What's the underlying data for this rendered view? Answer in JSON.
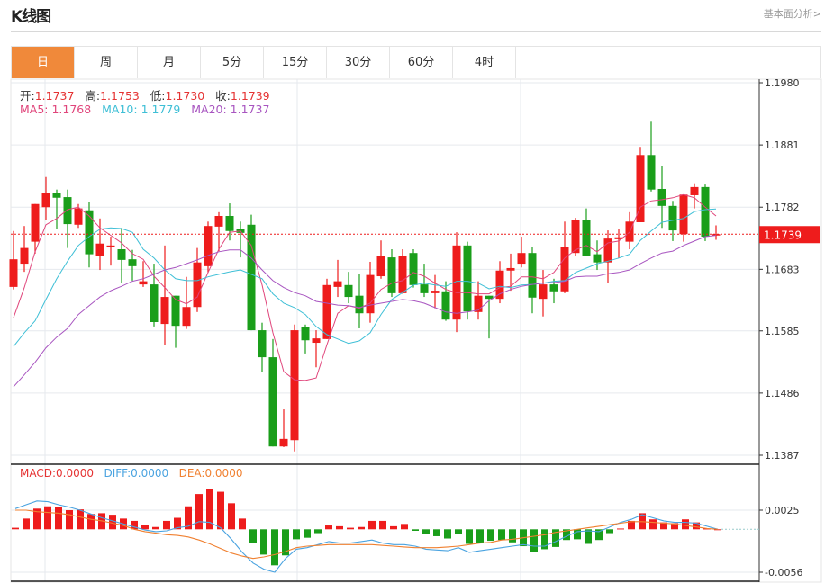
{
  "header": {
    "title": "K线图",
    "link": "基本面分析>"
  },
  "tabs": [
    {
      "label": "日",
      "active": true
    },
    {
      "label": "周"
    },
    {
      "label": "月"
    },
    {
      "label": "5分"
    },
    {
      "label": "15分"
    },
    {
      "label": "30分"
    },
    {
      "label": "60分"
    },
    {
      "label": "4时"
    }
  ],
  "legend": {
    "open_label": "开:",
    "open": "1.1737",
    "high_label": "高:",
    "high": "1.1753",
    "low_label": "低:",
    "low": "1.1730",
    "close_label": "收:",
    "close": "1.1739",
    "ma5": "MA5: 1.1768",
    "ma10": "MA10: 1.1779",
    "ma20": "MA20: 1.1737"
  },
  "macd_legend": {
    "macd": "MACD:0.0000",
    "diff": "DIFF:0.0000",
    "dea": "DEA:0.0000"
  },
  "colors": {
    "up": "#ee1c1c",
    "down": "#1a9e1a",
    "accent": "#f0893a",
    "ma5": "#e0457b",
    "ma10": "#3ebfd6",
    "ma20": "#a855c0",
    "diff": "#4aa3e0",
    "dea": "#f08030",
    "legend_value": "#e53333"
  },
  "chart_data": [
    {
      "type": "candlestick",
      "candle_fields": [
        "open",
        "high",
        "low",
        "close"
      ],
      "ylim": [
        1.1387,
        1.198
      ],
      "yticks": [
        "1.1980",
        "1.1881",
        "1.1782",
        "1.1683",
        "1.1585",
        "1.1486",
        "1.1387"
      ],
      "last_price": "1.1739",
      "grid": true,
      "candles": [
        [
          1.1655,
          1.1744,
          1.1651,
          1.1699
        ],
        [
          1.1692,
          1.1752,
          1.1679,
          1.1717
        ],
        [
          1.1727,
          1.1787,
          1.1708,
          1.1787
        ],
        [
          1.1782,
          1.183,
          1.1761,
          1.1805
        ],
        [
          1.1804,
          1.181,
          1.1747,
          1.1797
        ],
        [
          1.1798,
          1.181,
          1.1717,
          1.1755
        ],
        [
          1.1754,
          1.1787,
          1.1749,
          1.178
        ],
        [
          1.1777,
          1.179,
          1.1686,
          1.1707
        ],
        [
          1.1705,
          1.1764,
          1.1682,
          1.1724
        ],
        [
          1.1718,
          1.1735,
          1.1689,
          1.1721
        ],
        [
          1.1715,
          1.1749,
          1.1662,
          1.1698
        ],
        [
          1.1699,
          1.1714,
          1.1665,
          1.1688
        ],
        [
          1.1659,
          1.1696,
          1.1655,
          1.1664
        ],
        [
          1.1659,
          1.1692,
          1.1592,
          1.1599
        ],
        [
          1.1596,
          1.1721,
          1.1563,
          1.1639
        ],
        [
          1.1641,
          1.1641,
          1.1558,
          1.1593
        ],
        [
          1.1593,
          1.1671,
          1.1588,
          1.1623
        ],
        [
          1.1623,
          1.1717,
          1.1615,
          1.1694
        ],
        [
          1.1688,
          1.1759,
          1.1678,
          1.1752
        ],
        [
          1.1751,
          1.1774,
          1.1712,
          1.1768
        ],
        [
          1.1768,
          1.1788,
          1.1729,
          1.1744
        ],
        [
          1.1747,
          1.1759,
          1.1702,
          1.1741
        ],
        [
          1.1754,
          1.177,
          1.1586,
          1.1586
        ],
        [
          1.1586,
          1.1598,
          1.1519,
          1.1543
        ],
        [
          1.1543,
          1.1572,
          1.1401,
          1.1401
        ],
        [
          1.1401,
          1.146,
          1.14,
          1.1413
        ],
        [
          1.1411,
          1.1595,
          1.1393,
          1.1586
        ],
        [
          1.1591,
          1.1595,
          1.1549,
          1.157
        ],
        [
          1.1566,
          1.1586,
          1.1527,
          1.1573
        ],
        [
          1.1572,
          1.1668,
          1.1572,
          1.1658
        ],
        [
          1.1655,
          1.1698,
          1.1639,
          1.1664
        ],
        [
          1.1658,
          1.1679,
          1.1629,
          1.1639
        ],
        [
          1.1641,
          1.1675,
          1.1589,
          1.1613
        ],
        [
          1.1613,
          1.1695,
          1.1598,
          1.1674
        ],
        [
          1.1672,
          1.1729,
          1.1668,
          1.1704
        ],
        [
          1.1702,
          1.1715,
          1.1639,
          1.1645
        ],
        [
          1.1645,
          1.1715,
          1.1644,
          1.1704
        ],
        [
          1.1709,
          1.1715,
          1.1654,
          1.1658
        ],
        [
          1.1659,
          1.1692,
          1.1639,
          1.1645
        ],
        [
          1.1645,
          1.1674,
          1.1621,
          1.1649
        ],
        [
          1.1648,
          1.1664,
          1.1601,
          1.1603
        ],
        [
          1.1603,
          1.1742,
          1.1583,
          1.1721
        ],
        [
          1.1721,
          1.1727,
          1.1603,
          1.1616
        ],
        [
          1.1615,
          1.1664,
          1.1603,
          1.1641
        ],
        [
          1.1641,
          1.1641,
          1.1573,
          1.1636
        ],
        [
          1.1636,
          1.1696,
          1.1629,
          1.1681
        ],
        [
          1.1681,
          1.1708,
          1.1649,
          1.1685
        ],
        [
          1.1692,
          1.1735,
          1.1686,
          1.1709
        ],
        [
          1.1709,
          1.1718,
          1.1613,
          1.1638
        ],
        [
          1.1636,
          1.1682,
          1.1608,
          1.1659
        ],
        [
          1.1659,
          1.1668,
          1.1629,
          1.1648
        ],
        [
          1.1648,
          1.1759,
          1.1645,
          1.1718
        ],
        [
          1.1709,
          1.1765,
          1.1704,
          1.1762
        ],
        [
          1.1762,
          1.178,
          1.1705,
          1.1705
        ],
        [
          1.1707,
          1.1729,
          1.1682,
          1.1694
        ],
        [
          1.1694,
          1.1745,
          1.1661,
          1.1732
        ],
        [
          1.1731,
          1.1747,
          1.1701,
          1.1734
        ],
        [
          1.1727,
          1.1774,
          1.1715,
          1.1759
        ],
        [
          1.1758,
          1.1878,
          1.1758,
          1.1865
        ],
        [
          1.1865,
          1.1918,
          1.1807,
          1.181
        ],
        [
          1.1811,
          1.1848,
          1.1749,
          1.1784
        ],
        [
          1.1784,
          1.1792,
          1.1728,
          1.1745
        ],
        [
          1.1739,
          1.1802,
          1.1727,
          1.1802
        ],
        [
          1.1801,
          1.182,
          1.178,
          1.1814
        ],
        [
          1.1814,
          1.1818,
          1.1728,
          1.1735
        ],
        [
          1.1737,
          1.1753,
          1.173,
          1.1739
        ]
      ],
      "ma5": [
        1.1606,
        1.1654,
        1.1711,
        1.1754,
        1.1764,
        1.1778,
        1.1782,
        1.1768,
        1.1749,
        1.1737,
        1.1725,
        1.1708,
        1.1699,
        1.1672,
        1.1654,
        1.1635,
        1.1628,
        1.1639,
        1.1678,
        1.1715,
        1.1742,
        1.1744,
        1.1721,
        1.1658,
        1.1582,
        1.152,
        1.1507,
        1.1506,
        1.151,
        1.1563,
        1.1613,
        1.1625,
        1.1621,
        1.1629,
        1.1651,
        1.1661,
        1.1665,
        1.1678,
        1.1672,
        1.1661,
        1.1651,
        1.1646,
        1.1646,
        1.1644,
        1.1644,
        1.1654,
        1.1656,
        1.1671,
        1.1671,
        1.1668,
        1.1678,
        1.1701,
        1.1714,
        1.1721,
        1.1711,
        1.1725,
        1.1728,
        1.1742,
        1.1782,
        1.1792,
        1.1794,
        1.1797,
        1.1802,
        1.1797,
        1.1782,
        1.1768
      ],
      "ma10": [
        1.156,
        1.1582,
        1.1601,
        1.1635,
        1.1668,
        1.1696,
        1.1721,
        1.1735,
        1.1747,
        1.1749,
        1.1748,
        1.1742,
        1.1715,
        1.1701,
        1.1682,
        1.1668,
        1.1665,
        1.1665,
        1.1671,
        1.1675,
        1.1679,
        1.1682,
        1.1675,
        1.1668,
        1.1644,
        1.1629,
        1.1622,
        1.1611,
        1.1592,
        1.1579,
        1.1572,
        1.1565,
        1.1569,
        1.1582,
        1.1611,
        1.1635,
        1.1646,
        1.1658,
        1.1661,
        1.1658,
        1.1656,
        1.1664,
        1.1664,
        1.1661,
        1.1652,
        1.1656,
        1.1654,
        1.1658,
        1.1659,
        1.1661,
        1.1664,
        1.1665,
        1.1678,
        1.1685,
        1.1692,
        1.1696,
        1.1701,
        1.1707,
        1.1729,
        1.1744,
        1.1758,
        1.1761,
        1.1764,
        1.1775,
        1.1778,
        1.1779
      ],
      "ma20": [
        1.1496,
        1.1515,
        1.1535,
        1.1558,
        1.1575,
        1.1589,
        1.1611,
        1.1625,
        1.1639,
        1.1649,
        1.1656,
        1.1664,
        1.1668,
        1.1675,
        1.1682,
        1.1686,
        1.1692,
        1.1698,
        1.1705,
        1.1711,
        1.1714,
        1.1714,
        1.1701,
        1.1682,
        1.1665,
        1.1654,
        1.1646,
        1.1641,
        1.1632,
        1.1629,
        1.1626,
        1.1625,
        1.1622,
        1.1626,
        1.1629,
        1.1632,
        1.1635,
        1.1633,
        1.1629,
        1.1622,
        1.1615,
        1.1613,
        1.1615,
        1.1618,
        1.1633,
        1.1644,
        1.1651,
        1.1656,
        1.1659,
        1.1661,
        1.1662,
        1.1664,
        1.1671,
        1.1672,
        1.1672,
        1.1676,
        1.1678,
        1.1682,
        1.1692,
        1.1701,
        1.1709,
        1.1712,
        1.1721,
        1.1728,
        1.1735,
        1.1737
      ]
    },
    {
      "type": "bar",
      "name": "MACD",
      "ylim": [
        -0.0056,
        0.0025
      ],
      "yticks": [
        "0.0025",
        "-0.0056"
      ],
      "macd": [
        0.0002,
        0.0014,
        0.0027,
        0.003,
        0.0029,
        0.0025,
        0.0026,
        0.002,
        0.0021,
        0.0019,
        0.0014,
        0.0011,
        0.0006,
        0.0003,
        0.0011,
        0.0015,
        0.003,
        0.0046,
        0.0053,
        0.0049,
        0.0034,
        0.0014,
        -0.0018,
        -0.0033,
        -0.0047,
        -0.0034,
        -0.0013,
        -0.0011,
        -0.0005,
        0.0005,
        0.0004,
        0.0002,
        0.0003,
        0.0011,
        0.0011,
        0.0004,
        0.0007,
        -0.0002,
        -0.0006,
        -0.0009,
        -0.0012,
        -0.0006,
        -0.0019,
        -0.0018,
        -0.0015,
        -0.0014,
        -0.0017,
        -0.0022,
        -0.0029,
        -0.0026,
        -0.0023,
        -0.0014,
        -0.0013,
        -0.0019,
        -0.0014,
        -0.0005,
        0.0001,
        0.0011,
        0.0021,
        0.0013,
        0.0009,
        0.0008,
        0.0013,
        0.0009,
        0.0001,
        0.0
      ],
      "diff": [
        0.0027,
        0.0032,
        0.0037,
        0.0036,
        0.0032,
        0.0029,
        0.0025,
        0.002,
        0.0015,
        0.0011,
        0.0007,
        0.0003,
        -0.0001,
        -0.0003,
        -0.0002,
        0.0002,
        0.0004,
        0.001,
        0.0009,
        0.0002,
        -0.0013,
        -0.003,
        -0.0044,
        -0.0052,
        -0.0056,
        -0.0038,
        -0.0026,
        -0.0024,
        -0.002,
        -0.0016,
        -0.0018,
        -0.0018,
        -0.0016,
        -0.0014,
        -0.0018,
        -0.002,
        -0.002,
        -0.0022,
        -0.0026,
        -0.0027,
        -0.0028,
        -0.0024,
        -0.003,
        -0.0028,
        -0.0026,
        -0.0024,
        -0.0022,
        -0.002,
        -0.0022,
        -0.0022,
        -0.0016,
        -0.0009,
        -0.0003,
        -0.0002,
        -0.0003,
        0.0003,
        0.0009,
        0.0013,
        0.0019,
        0.0015,
        0.0011,
        0.0009,
        0.0009,
        0.0008,
        0.0004,
        0.0
      ],
      "dea": [
        0.0025,
        0.0025,
        0.0023,
        0.0022,
        0.0021,
        0.0019,
        0.0016,
        0.0013,
        0.0011,
        0.0008,
        0.0005,
        0.0,
        -0.0003,
        -0.0005,
        -0.0007,
        -0.0008,
        -0.001,
        -0.0014,
        -0.0019,
        -0.0025,
        -0.0031,
        -0.0035,
        -0.0038,
        -0.0036,
        -0.0033,
        -0.0029,
        -0.0024,
        -0.0022,
        -0.0021,
        -0.002,
        -0.002,
        -0.002,
        -0.002,
        -0.002,
        -0.0021,
        -0.0022,
        -0.0023,
        -0.0024,
        -0.0024,
        -0.0024,
        -0.0023,
        -0.0022,
        -0.002,
        -0.0018,
        -0.0017,
        -0.0014,
        -0.0013,
        -0.0011,
        -0.0009,
        -0.0007,
        -0.0004,
        -0.0002,
        0.0,
        0.0002,
        0.0004,
        0.0006,
        0.0008,
        0.001,
        0.001,
        0.0009,
        0.0008,
        0.0007,
        0.0005,
        0.0003,
        0.0001,
        0.0
      ]
    }
  ]
}
